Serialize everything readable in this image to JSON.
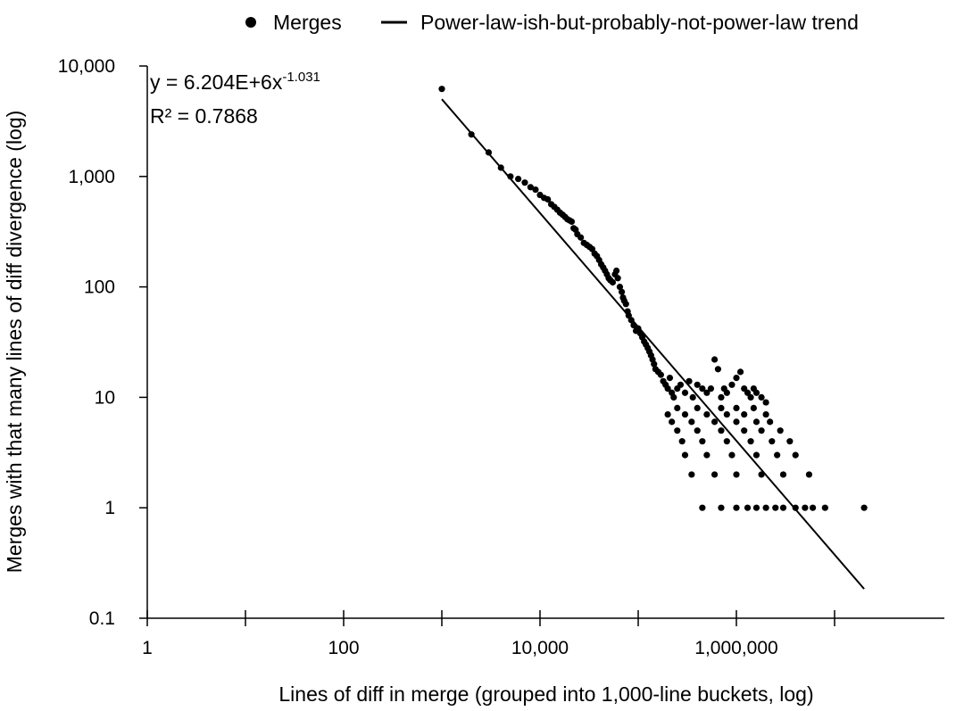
{
  "chart_data": {
    "type": "scatter",
    "x_scale": "log",
    "y_scale": "log",
    "xlabel": "Lines of diff in merge (grouped into 1,000-line buckets, log)",
    "ylabel": "Merges with that many lines of diff divergence (log)",
    "xlim": [
      1,
      100000000
    ],
    "ylim": [
      0.1,
      10000
    ],
    "x_tick_labels": [
      {
        "value": 1,
        "label": "1"
      },
      {
        "value": 10,
        "label": ""
      },
      {
        "value": 100,
        "label": "100"
      },
      {
        "value": 1000,
        "label": ""
      },
      {
        "value": 10000,
        "label": "10,000"
      },
      {
        "value": 100000,
        "label": ""
      },
      {
        "value": 1000000,
        "label": "1,000,000"
      },
      {
        "value": 10000000,
        "label": ""
      }
    ],
    "y_tick_labels": [
      {
        "value": 0.1,
        "label": "0.1"
      },
      {
        "value": 1,
        "label": "1"
      },
      {
        "value": 10,
        "label": "10"
      },
      {
        "value": 100,
        "label": "100"
      },
      {
        "value": 1000,
        "label": "1,000"
      },
      {
        "value": 10000,
        "label": "10,000"
      }
    ],
    "grid": false,
    "legend_position": "top",
    "legend": [
      {
        "name": "Merges",
        "symbol": "marker"
      },
      {
        "name": "Power-law-ish-but-probably-not-power-law trend",
        "symbol": "line"
      }
    ],
    "series": [
      {
        "name": "Merges",
        "color": "#000000",
        "points": [
          [
            1000,
            6200
          ],
          [
            2000,
            2400
          ],
          [
            3000,
            1650
          ],
          [
            4000,
            1200
          ],
          [
            5000,
            1000
          ],
          [
            6000,
            950
          ],
          [
            7000,
            880
          ],
          [
            8000,
            800
          ],
          [
            9000,
            760
          ],
          [
            10000,
            680
          ],
          [
            11000,
            640
          ],
          [
            12000,
            620
          ],
          [
            13000,
            560
          ],
          [
            14000,
            530
          ],
          [
            15000,
            500
          ],
          [
            16000,
            470
          ],
          [
            17000,
            450
          ],
          [
            18000,
            430
          ],
          [
            19000,
            410
          ],
          [
            20000,
            400
          ],
          [
            21000,
            390
          ],
          [
            22000,
            340
          ],
          [
            23000,
            330
          ],
          [
            24000,
            300
          ],
          [
            26000,
            280
          ],
          [
            28000,
            250
          ],
          [
            30000,
            240
          ],
          [
            32000,
            230
          ],
          [
            34000,
            220
          ],
          [
            36000,
            200
          ],
          [
            38000,
            190
          ],
          [
            40000,
            175
          ],
          [
            42000,
            160
          ],
          [
            44000,
            150
          ],
          [
            46000,
            140
          ],
          [
            48000,
            130
          ],
          [
            50000,
            120
          ],
          [
            52000,
            115
          ],
          [
            55000,
            110
          ],
          [
            58000,
            130
          ],
          [
            60000,
            140
          ],
          [
            62000,
            120
          ],
          [
            65000,
            100
          ],
          [
            68000,
            90
          ],
          [
            70000,
            80
          ],
          [
            72000,
            75
          ],
          [
            75000,
            70
          ],
          [
            78000,
            60
          ],
          [
            80000,
            55
          ],
          [
            85000,
            50
          ],
          [
            90000,
            45
          ],
          [
            95000,
            40
          ],
          [
            100000,
            42
          ],
          [
            105000,
            38
          ],
          [
            110000,
            35
          ],
          [
            115000,
            32
          ],
          [
            120000,
            30
          ],
          [
            125000,
            28
          ],
          [
            130000,
            26
          ],
          [
            135000,
            24
          ],
          [
            140000,
            22
          ],
          [
            145000,
            20
          ],
          [
            150000,
            18
          ],
          [
            160000,
            17
          ],
          [
            170000,
            16
          ],
          [
            180000,
            14
          ],
          [
            190000,
            13
          ],
          [
            200000,
            12
          ],
          [
            210000,
            15
          ],
          [
            220000,
            11
          ],
          [
            230000,
            10
          ],
          [
            250000,
            12
          ],
          [
            270000,
            13
          ],
          [
            300000,
            11
          ],
          [
            330000,
            14
          ],
          [
            360000,
            10
          ],
          [
            400000,
            13
          ],
          [
            450000,
            12
          ],
          [
            500000,
            11
          ],
          [
            550000,
            12
          ],
          [
            600000,
            22
          ],
          [
            650000,
            18
          ],
          [
            700000,
            10
          ],
          [
            750000,
            12
          ],
          [
            800000,
            11
          ],
          [
            900000,
            13
          ],
          [
            1000000,
            15
          ],
          [
            1100000,
            17
          ],
          [
            1200000,
            12
          ],
          [
            1300000,
            11
          ],
          [
            1400000,
            10
          ],
          [
            1500000,
            12
          ],
          [
            1600000,
            11
          ],
          [
            1800000,
            10
          ],
          [
            2000000,
            9
          ],
          [
            250000,
            8
          ],
          [
            400000,
            8
          ],
          [
            700000,
            8
          ],
          [
            1000000,
            8
          ],
          [
            1500000,
            8
          ],
          [
            200000,
            7
          ],
          [
            300000,
            7
          ],
          [
            500000,
            7
          ],
          [
            800000,
            7
          ],
          [
            1200000,
            7
          ],
          [
            2000000,
            7
          ],
          [
            220000,
            6
          ],
          [
            350000,
            6
          ],
          [
            600000,
            6
          ],
          [
            1000000,
            6
          ],
          [
            1600000,
            6
          ],
          [
            2200000,
            6
          ],
          [
            250000,
            5
          ],
          [
            400000,
            5
          ],
          [
            700000,
            5
          ],
          [
            1200000,
            5
          ],
          [
            1800000,
            5
          ],
          [
            2800000,
            5
          ],
          [
            280000,
            4
          ],
          [
            450000,
            4
          ],
          [
            800000,
            4
          ],
          [
            1400000,
            4
          ],
          [
            2300000,
            4
          ],
          [
            3500000,
            4
          ],
          [
            300000,
            3
          ],
          [
            500000,
            3
          ],
          [
            900000,
            3
          ],
          [
            1600000,
            3
          ],
          [
            2600000,
            3
          ],
          [
            4000000,
            3
          ],
          [
            350000,
            2
          ],
          [
            600000,
            2
          ],
          [
            1000000,
            2
          ],
          [
            1800000,
            2
          ],
          [
            3000000,
            2
          ],
          [
            5500000,
            2
          ],
          [
            450000,
            1
          ],
          [
            700000,
            1
          ],
          [
            1000000,
            1
          ],
          [
            1300000,
            1
          ],
          [
            1600000,
            1
          ],
          [
            2000000,
            1
          ],
          [
            2500000,
            1
          ],
          [
            3000000,
            1
          ],
          [
            4000000,
            1
          ],
          [
            5000000,
            1
          ],
          [
            6000000,
            1
          ],
          [
            8000000,
            1
          ],
          [
            20000000,
            1
          ]
        ]
      },
      {
        "name": "Power-law-ish-but-probably-not-power-law trend",
        "color": "#000000",
        "fit": "power",
        "coefficient": 6204000,
        "exponent": -1.031,
        "x_range": [
          1000,
          20000000
        ]
      }
    ],
    "annotations": {
      "equation_prefix": "y = 6.204E+6x",
      "equation_exponent": "-1.031",
      "r_squared": "R² = 0.7868"
    }
  }
}
